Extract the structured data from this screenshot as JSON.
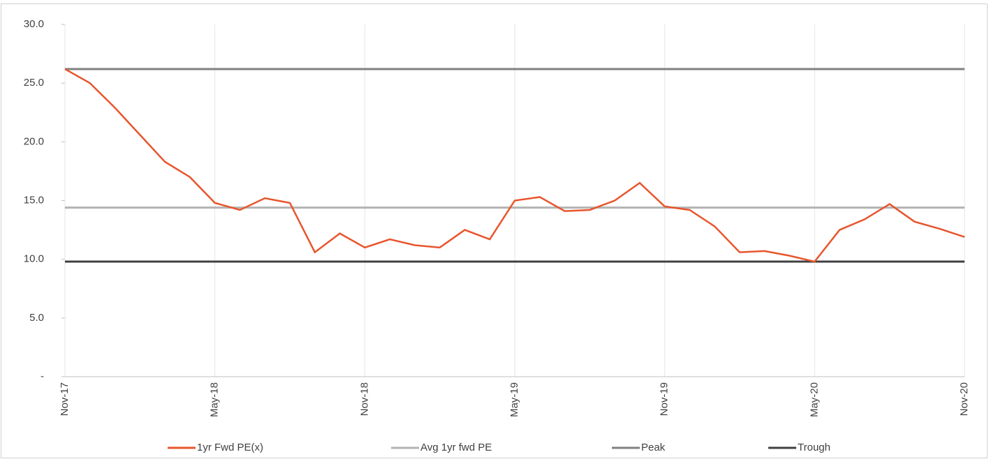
{
  "chart_data": {
    "type": "line",
    "categories": [
      "Nov-17",
      null,
      null,
      null,
      null,
      null,
      "May-18",
      null,
      null,
      null,
      null,
      null,
      "Nov-18",
      null,
      null,
      null,
      null,
      null,
      "May-19",
      null,
      null,
      null,
      null,
      null,
      "Nov-19",
      null,
      null,
      null,
      null,
      null,
      "May-20",
      null,
      null,
      null,
      null,
      null,
      "Nov-20"
    ],
    "series": [
      {
        "name": "1yr Fwd PE(x)",
        "color": "#e8552d",
        "values": [
          26.2,
          25.0,
          22.9,
          20.6,
          18.3,
          17.0,
          14.8,
          14.2,
          15.2,
          14.8,
          10.6,
          12.2,
          11.0,
          11.7,
          11.2,
          11.0,
          12.5,
          11.7,
          15.0,
          15.3,
          14.1,
          14.2,
          15.0,
          16.5,
          14.5,
          14.2,
          12.8,
          10.6,
          10.7,
          10.3,
          9.8,
          12.5,
          13.4,
          14.7,
          13.2,
          12.6,
          11.9
        ]
      },
      {
        "name": "Avg 1yr fwd PE",
        "color": "#b3b3b3",
        "values": [
          14.4,
          14.4,
          14.4,
          14.4,
          14.4,
          14.4,
          14.4,
          14.4,
          14.4,
          14.4,
          14.4,
          14.4,
          14.4,
          14.4,
          14.4,
          14.4,
          14.4,
          14.4,
          14.4,
          14.4,
          14.4,
          14.4,
          14.4,
          14.4,
          14.4,
          14.4,
          14.4,
          14.4,
          14.4,
          14.4,
          14.4,
          14.4,
          14.4,
          14.4,
          14.4,
          14.4,
          14.4
        ]
      },
      {
        "name": "Peak",
        "color": "#808080",
        "values": [
          26.2,
          26.2,
          26.2,
          26.2,
          26.2,
          26.2,
          26.2,
          26.2,
          26.2,
          26.2,
          26.2,
          26.2,
          26.2,
          26.2,
          26.2,
          26.2,
          26.2,
          26.2,
          26.2,
          26.2,
          26.2,
          26.2,
          26.2,
          26.2,
          26.2,
          26.2,
          26.2,
          26.2,
          26.2,
          26.2,
          26.2,
          26.2,
          26.2,
          26.2,
          26.2,
          26.2,
          26.2
        ]
      },
      {
        "name": "Trough",
        "color": "#404040",
        "values": [
          9.8,
          9.8,
          9.8,
          9.8,
          9.8,
          9.8,
          9.8,
          9.8,
          9.8,
          9.8,
          9.8,
          9.8,
          9.8,
          9.8,
          9.8,
          9.8,
          9.8,
          9.8,
          9.8,
          9.8,
          9.8,
          9.8,
          9.8,
          9.8,
          9.8,
          9.8,
          9.8,
          9.8,
          9.8,
          9.8,
          9.8,
          9.8,
          9.8,
          9.8,
          9.8,
          9.8,
          9.8
        ]
      }
    ],
    "ylim": [
      0,
      30
    ],
    "yticks": [
      {
        "value": 0,
        "label": "-"
      },
      {
        "value": 5,
        "label": "5.0"
      },
      {
        "value": 10,
        "label": "10.0"
      },
      {
        "value": 15,
        "label": "15.0"
      },
      {
        "value": 20,
        "label": "20.0"
      },
      {
        "value": 25,
        "label": "25.0"
      },
      {
        "value": 30,
        "label": "30.0"
      }
    ],
    "grid": "x",
    "legend": "bottom"
  }
}
